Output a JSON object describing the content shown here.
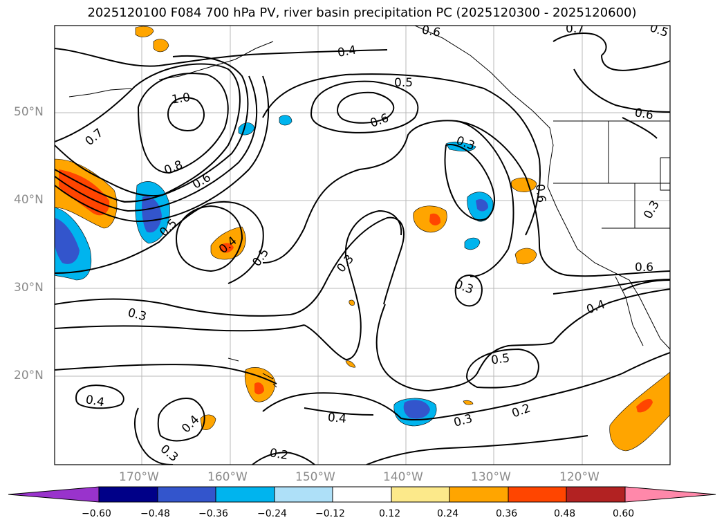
{
  "title": "2025120100 F084 700 hPa PV, river basin precipitation PC (2025120300 - 2025120600)",
  "latitude_labels": [
    "50°N",
    "40°N",
    "30°N",
    "20°N"
  ],
  "longitude_labels": [
    "170°W",
    "160°W",
    "150°W",
    "140°W",
    "130°W",
    "120°W"
  ],
  "contour_labels": [
    "0.4",
    "0.5",
    "0.6",
    "1.0",
    "0.7",
    "0.8",
    "0.6",
    "0.5",
    "0.4",
    "0.5",
    "0.3",
    "0.3",
    "0.6",
    "0.3",
    "0.6",
    "0.5",
    "0.6",
    "0.3",
    "0.4",
    "0.6",
    "0.5",
    "0.3",
    "0.4",
    "0.2",
    "0.3",
    "0.4",
    "0.4",
    "0.3",
    "0.2",
    "0.7",
    "0.6"
  ],
  "colorbar": {
    "ticks": [
      "−0.60",
      "−0.48",
      "−0.36",
      "−0.24",
      "−0.12",
      "0.12",
      "0.24",
      "0.36",
      "0.48",
      "0.60"
    ],
    "colors": [
      "#9933cc",
      "#000088",
      "#3355cc",
      "#00b4ee",
      "#aee0f8",
      "#ffffff",
      "#fce98a",
      "#ffa500",
      "#ff4500",
      "#b22222",
      "#ff88aa"
    ]
  }
}
